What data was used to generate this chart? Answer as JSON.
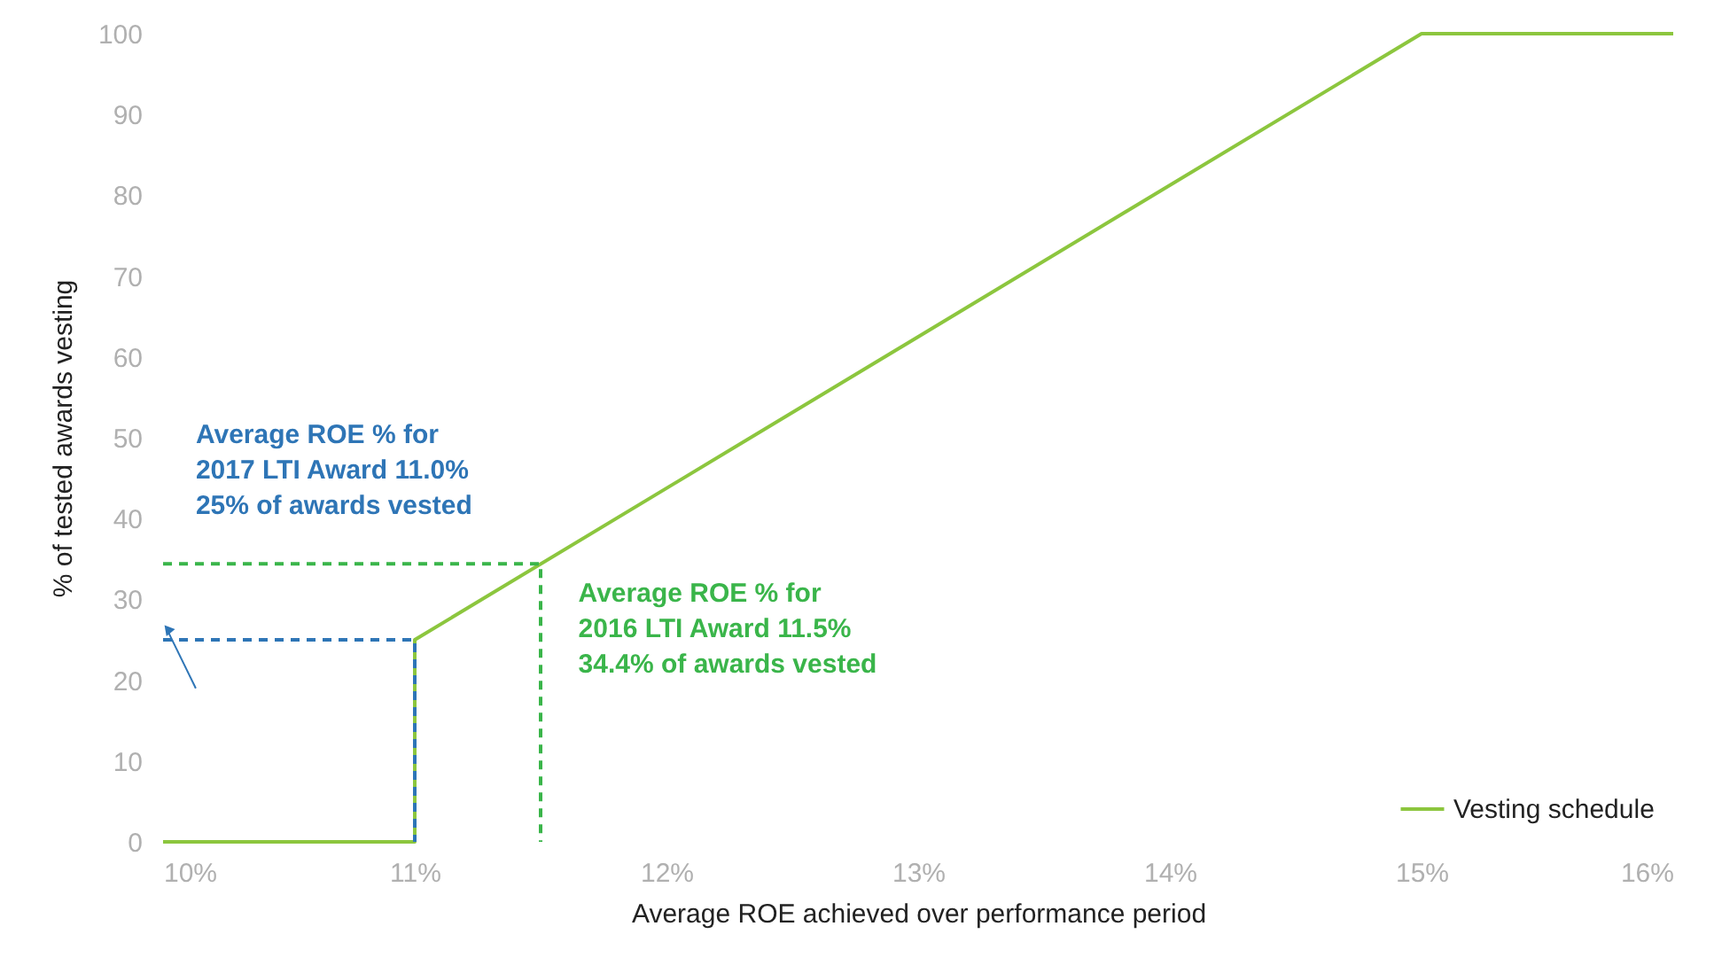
{
  "chart_data": {
    "type": "line",
    "xlabel": "Average ROE achieved over performance period",
    "ylabel": "% of tested awards vesting",
    "xlim": [
      10,
      16
    ],
    "xticks": [
      {
        "value": 10,
        "label": "10%"
      },
      {
        "value": 11,
        "label": "11%"
      },
      {
        "value": 12,
        "label": "12%"
      },
      {
        "value": 13,
        "label": "13%"
      },
      {
        "value": 14,
        "label": "14%"
      },
      {
        "value": 15,
        "label": "15%"
      },
      {
        "value": 16,
        "label": "16%"
      }
    ],
    "ylim": [
      0,
      100
    ],
    "yticks": [
      0,
      10,
      20,
      30,
      40,
      50,
      60,
      70,
      80,
      90,
      100
    ],
    "grid": false,
    "legend": "bottom right",
    "marker": "none",
    "series": [
      {
        "name": "Vesting schedule",
        "color": "#8cc63e",
        "line_style": "solid",
        "x": [
          10,
          11,
          11,
          15,
          16
        ],
        "values": [
          0,
          0,
          25,
          100,
          100
        ]
      },
      {
        "color": "#2e75b6",
        "line_style": "dashed",
        "x": [
          10,
          11,
          11
        ],
        "values": [
          25,
          25,
          0
        ]
      },
      {
        "color": "#3ab54a",
        "line_style": "dashed",
        "x": [
          10,
          11.5,
          11.5
        ],
        "values": [
          34.4,
          34.4,
          0
        ]
      }
    ],
    "annotations": [
      "Average ROE % for\n2017 LTI Award 11.0%\n25% of awards vested",
      "Average ROE % for\n2016 LTI Award 11.5%\n34.4% of awards vested"
    ]
  }
}
